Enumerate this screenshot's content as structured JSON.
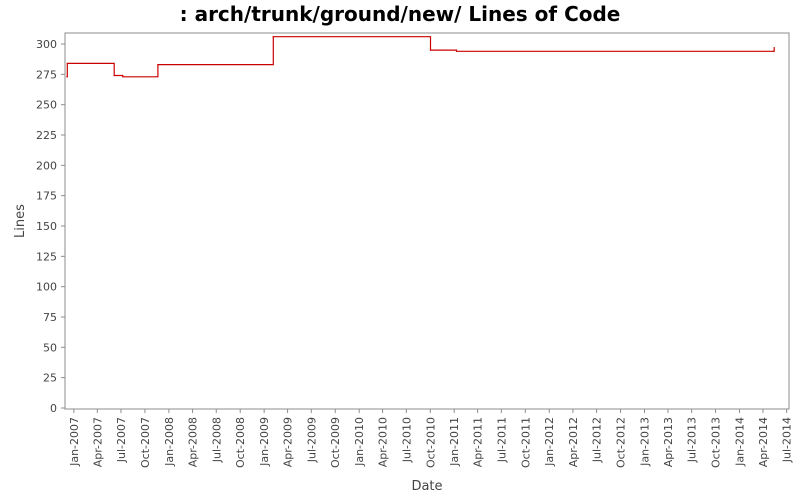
{
  "chart_data": {
    "type": "line",
    "title": ": arch/trunk/ground/new/ Lines of Code",
    "xlabel": "Date",
    "ylabel": "Lines",
    "ylim": [
      0,
      305
    ],
    "xlim": [
      "2006-11-28",
      "2014-07-10"
    ],
    "yticks": [
      0,
      25,
      50,
      75,
      100,
      125,
      150,
      175,
      200,
      225,
      250,
      275,
      300
    ],
    "xticks": [
      {
        "label": "Jan-2007",
        "date": "2007-01-01"
      },
      {
        "label": "Apr-2007",
        "date": "2007-04-01"
      },
      {
        "label": "Jul-2007",
        "date": "2007-07-01"
      },
      {
        "label": "Oct-2007",
        "date": "2007-10-01"
      },
      {
        "label": "Jan-2008",
        "date": "2008-01-01"
      },
      {
        "label": "Apr-2008",
        "date": "2008-04-01"
      },
      {
        "label": "Jul-2008",
        "date": "2008-07-01"
      },
      {
        "label": "Oct-2008",
        "date": "2008-10-01"
      },
      {
        "label": "Jan-2009",
        "date": "2009-01-01"
      },
      {
        "label": "Apr-2009",
        "date": "2009-04-01"
      },
      {
        "label": "Jul-2009",
        "date": "2009-07-01"
      },
      {
        "label": "Oct-2009",
        "date": "2009-10-01"
      },
      {
        "label": "Jan-2010",
        "date": "2010-01-01"
      },
      {
        "label": "Apr-2010",
        "date": "2010-04-01"
      },
      {
        "label": "Jul-2010",
        "date": "2010-07-01"
      },
      {
        "label": "Oct-2010",
        "date": "2010-10-01"
      },
      {
        "label": "Jan-2011",
        "date": "2011-01-01"
      },
      {
        "label": "Apr-2011",
        "date": "2011-04-01"
      },
      {
        "label": "Jul-2011",
        "date": "2011-07-01"
      },
      {
        "label": "Oct-2011",
        "date": "2011-10-01"
      },
      {
        "label": "Jan-2012",
        "date": "2012-01-01"
      },
      {
        "label": "Apr-2012",
        "date": "2012-04-01"
      },
      {
        "label": "Jul-2012",
        "date": "2012-07-01"
      },
      {
        "label": "Oct-2012",
        "date": "2012-10-01"
      },
      {
        "label": "Jan-2013",
        "date": "2013-01-01"
      },
      {
        "label": "Apr-2013",
        "date": "2013-04-01"
      },
      {
        "label": "Jul-2013",
        "date": "2013-07-01"
      },
      {
        "label": "Oct-2013",
        "date": "2013-10-01"
      },
      {
        "label": "Jan-2014",
        "date": "2014-01-01"
      },
      {
        "label": "Apr-2014",
        "date": "2014-04-01"
      },
      {
        "label": "Jul-2014",
        "date": "2014-07-01"
      }
    ],
    "grid": false,
    "series": [
      {
        "color": "#cc0000",
        "step": true,
        "points": [
          {
            "x": "2006-12-05",
            "y": 273
          },
          {
            "x": "2006-12-07",
            "y": 284
          },
          {
            "x": "2007-06-05",
            "y": 274
          },
          {
            "x": "2007-07-08",
            "y": 273
          },
          {
            "x": "2007-11-20",
            "y": 283
          },
          {
            "x": "2009-02-05",
            "y": 306
          },
          {
            "x": "2010-10-02",
            "y": 295
          },
          {
            "x": "2011-01-10",
            "y": 294
          },
          {
            "x": "2014-05-12",
            "y": 294
          },
          {
            "x": "2014-05-14",
            "y": 297
          }
        ]
      }
    ]
  }
}
